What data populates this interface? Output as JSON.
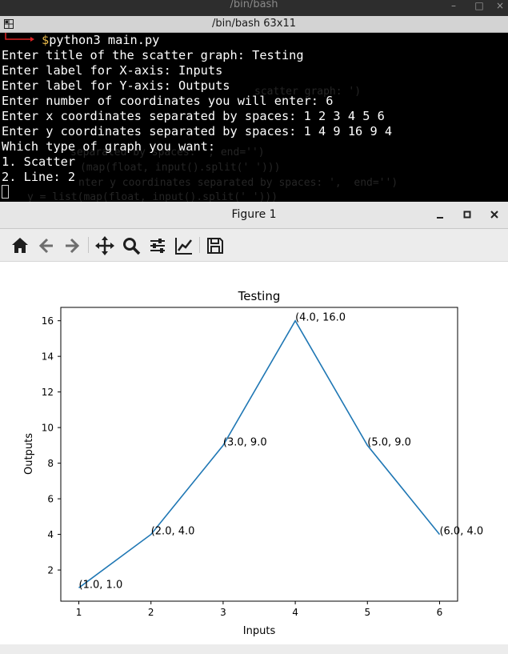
{
  "terminal": {
    "outer_title": "/bin/bash",
    "title": "/bin/bash 63x11",
    "prompt_symbol": "$",
    "command": "python3 main.py",
    "lines": [
      "Enter title of the scatter graph: Testing",
      "Enter label for X-axis: Inputs",
      "Enter label for Y-axis: Outputs",
      "Enter number of coordinates you will enter: 6",
      "Enter x coordinates separated by spaces: 1 2 3 4 5 6",
      "Enter y coordinates separated by spaces: 1 4 9 16 9 4",
      "Which type of graph you want:",
      "1. Scatter",
      "2. Line: 2"
    ],
    "ghost_lines": [
      "scatter graph: ')",
      "separated by spaces: ', end='')",
      "(map(float, input().split(' ')))",
      "nter y coordinates separated by spaces: ',  end='')",
      "y = list(map(float, input().split(' ')))"
    ]
  },
  "figure": {
    "window_title": "Figure 1",
    "toolbar": [
      "home-icon",
      "back-arrow-icon",
      "forward-arrow-icon",
      "pan-icon",
      "zoom-icon",
      "subplots-icon",
      "edit-axis-icon",
      "save-icon"
    ]
  },
  "chart_data": {
    "type": "line",
    "title": "Testing",
    "xlabel": "Inputs",
    "ylabel": "Outputs",
    "x": [
      1,
      2,
      3,
      4,
      5,
      6
    ],
    "y": [
      1,
      4,
      9,
      16,
      9,
      4
    ],
    "point_labels": [
      "(1.0, 1.0",
      "(2.0, 4.0",
      "(3.0, 9.0",
      "(4.0, 16.0",
      "(5.0, 9.0",
      "(6.0, 4.0"
    ],
    "xticks": [
      1,
      2,
      3,
      4,
      5,
      6
    ],
    "yticks": [
      2,
      4,
      6,
      8,
      10,
      12,
      14,
      16
    ],
    "xlim": [
      0.75,
      6.25
    ],
    "ylim": [
      0.25,
      16.75
    ],
    "line_color": "#1f77b4",
    "grid": false
  }
}
